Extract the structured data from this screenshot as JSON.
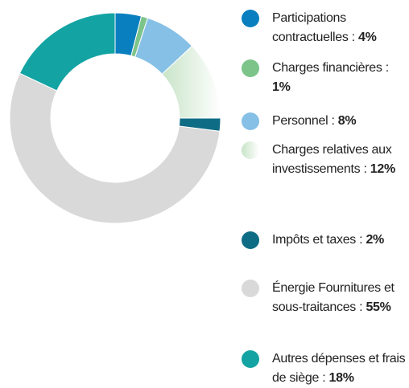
{
  "chart_data": {
    "type": "pie",
    "donut": true,
    "categories": [
      "Participations contractuelles :",
      "Charges financières :",
      "Personnel :",
      "Charges relatives aux investissements :",
      "Impôts et taxes :",
      "Énergie Fournitures et sous-traitances :",
      "Autres dépenses et frais de siège :"
    ],
    "values": [
      4,
      1,
      8,
      12,
      2,
      55,
      18
    ],
    "value_labels": [
      "4%",
      "1%",
      "8%",
      "12%",
      "2%",
      "55%",
      "18%"
    ],
    "colors": [
      "#0a7fc0",
      "#7cc48a",
      "#86c0e6",
      "#c8e4c8",
      "#0e6c84",
      "#d9d9d9",
      "#13a3a3"
    ]
  }
}
